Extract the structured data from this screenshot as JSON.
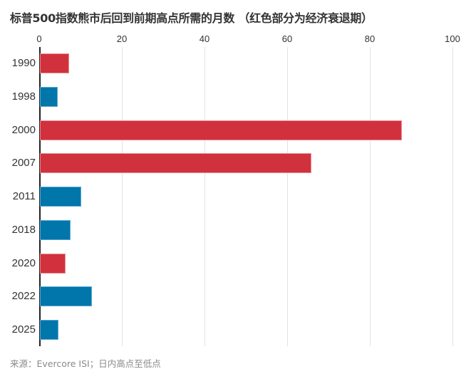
{
  "title": "标普500指数熊市后回到前期高点所需的月数 （红色部分为经济衰退期）",
  "source": "来源：Evercore ISI；日内高点至低点",
  "colors": {
    "recession": "#D1313D",
    "non_recession": "#0076AB",
    "grid": "#E2E2E2",
    "axis": "#222222"
  },
  "x_ticks": [
    "0",
    "20",
    "40",
    "60",
    "80",
    "100"
  ],
  "chart_data": {
    "type": "bar",
    "orientation": "horizontal",
    "title": "标普500指数熊市后回到前期高点所需的月数 （红色部分为经济衰退期）",
    "xlabel": "",
    "ylabel": "",
    "xlim": [
      0,
      100
    ],
    "x_ticks": [
      0,
      20,
      40,
      60,
      80,
      100
    ],
    "grid": true,
    "categories": [
      "1990",
      "1998",
      "2000",
      "2007",
      "2011",
      "2018",
      "2020",
      "2022",
      "2025"
    ],
    "values": [
      7,
      4.3,
      87.5,
      65.7,
      10,
      7.4,
      6.2,
      12.6,
      4.5
    ],
    "recession": [
      true,
      false,
      true,
      true,
      false,
      false,
      true,
      false,
      false
    ],
    "legend": "红色部分为经济衰退期",
    "annotation": "来源：Evercore ISI；日内高点至低点"
  }
}
